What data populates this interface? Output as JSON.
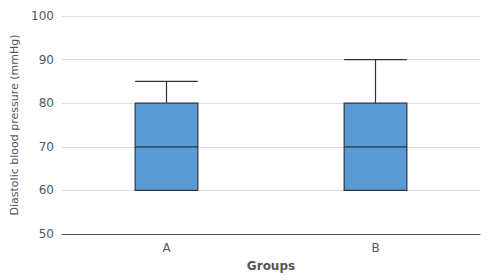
{
  "chart_data": {
    "type": "boxplot",
    "xlabel": "Groups",
    "ylabel": "Diastolic blood pressure (mmHg)",
    "categories": [
      "A",
      "B"
    ],
    "values": [
      {
        "min": 60,
        "q1": 60,
        "median": 70,
        "q3": 80,
        "max": 85
      },
      {
        "min": 60,
        "q1": 60,
        "median": 70,
        "q3": 80,
        "max": 90
      }
    ],
    "color": "#5B9BD5",
    "ylim": [
      50,
      100
    ],
    "yticks": [
      50,
      60,
      70,
      80,
      90,
      100
    ],
    "grid": true
  }
}
